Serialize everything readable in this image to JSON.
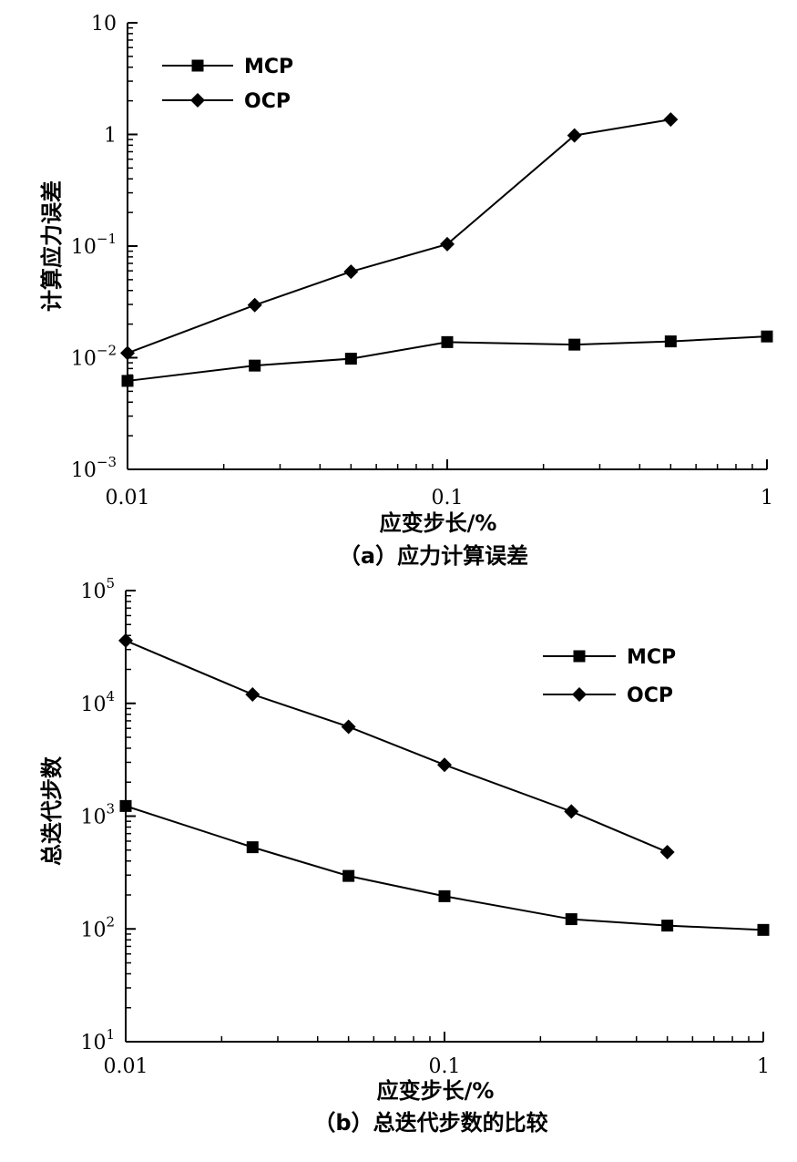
{
  "chart_data": [
    {
      "type": "line",
      "caption": "（a）应力计算误差",
      "xlabel": "应变步长/%",
      "ylabel": "计算应力误差",
      "xscale": "log",
      "yscale": "log",
      "xlim": [
        0.01,
        1
      ],
      "ylim": [
        0.001,
        10
      ],
      "x_ticks": [
        {
          "value": 0.01,
          "label": "0.01"
        },
        {
          "value": 0.1,
          "label": "0.1"
        },
        {
          "value": 1,
          "label": "1"
        }
      ],
      "y_ticks": [
        {
          "value": 10,
          "base": "10",
          "exp": ""
        },
        {
          "value": 1,
          "base": "1",
          "exp": ""
        },
        {
          "value": 0.1,
          "base": "10",
          "exp": "−1"
        },
        {
          "value": 0.01,
          "base": "10",
          "exp": "−2"
        },
        {
          "value": 0.001,
          "base": "10",
          "exp": "−3"
        }
      ],
      "legend_position": "top-left",
      "series": [
        {
          "name": "MCP",
          "marker": "square",
          "x": [
            0.01,
            0.025,
            0.05,
            0.1,
            0.25,
            0.5,
            1.0
          ],
          "y": [
            0.0062,
            0.0085,
            0.0098,
            0.0138,
            0.0131,
            0.014,
            0.0155
          ]
        },
        {
          "name": "OCP",
          "marker": "diamond",
          "x": [
            0.01,
            0.025,
            0.05,
            0.1,
            0.25,
            0.5
          ],
          "y": [
            0.011,
            0.0296,
            0.059,
            0.104,
            0.98,
            1.36
          ]
        }
      ]
    },
    {
      "type": "line",
      "caption": "（b）总迭代步数的比较",
      "xlabel": "应变步长/%",
      "ylabel": "总迭代步数",
      "xscale": "log",
      "yscale": "log",
      "xlim": [
        0.01,
        1
      ],
      "ylim": [
        10,
        100000
      ],
      "x_ticks": [
        {
          "value": 0.01,
          "label": "0.01"
        },
        {
          "value": 0.1,
          "label": "0.1"
        },
        {
          "value": 1,
          "label": "1"
        }
      ],
      "y_ticks": [
        {
          "value": 100000,
          "base": "10",
          "exp": "5"
        },
        {
          "value": 10000,
          "base": "10",
          "exp": "4"
        },
        {
          "value": 1000,
          "base": "10",
          "exp": "3"
        },
        {
          "value": 100,
          "base": "10",
          "exp": "2"
        },
        {
          "value": 10,
          "base": "10",
          "exp": "1"
        }
      ],
      "legend_position": "top-right",
      "series": [
        {
          "name": "MCP",
          "marker": "square",
          "x": [
            0.01,
            0.025,
            0.05,
            0.1,
            0.25,
            0.5,
            1.0
          ],
          "y": [
            1230,
            530,
            295,
            195,
            122,
            107,
            98
          ]
        },
        {
          "name": "OCP",
          "marker": "diamond",
          "x": [
            0.01,
            0.025,
            0.05,
            0.1,
            0.25,
            0.5
          ],
          "y": [
            36000,
            12000,
            6200,
            2850,
            1100,
            480
          ]
        }
      ]
    }
  ]
}
